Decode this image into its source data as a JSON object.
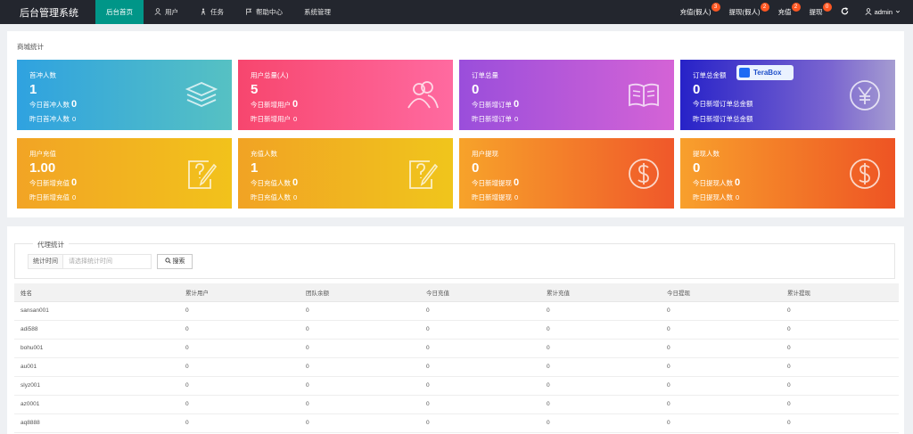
{
  "app_title": "后台管理系统",
  "nav": [
    {
      "label": "后台首页",
      "icon": "home-icon"
    },
    {
      "label": "用户",
      "icon": "user-icon"
    },
    {
      "label": "任务",
      "icon": "task-icon"
    },
    {
      "label": "帮助中心",
      "icon": "flag-icon"
    },
    {
      "label": "系统管理",
      "icon": ""
    }
  ],
  "header_right": [
    {
      "label": "充值(假人)",
      "badge": "3"
    },
    {
      "label": "提现(假人)",
      "badge": "2"
    },
    {
      "label": "充值",
      "badge": "2"
    },
    {
      "label": "提现",
      "badge": "0"
    }
  ],
  "user_name": "admin",
  "stats_title": "商城统计",
  "cards": [
    {
      "title": "首冲人数",
      "value": "1",
      "line1": "今日首冲人数",
      "line1_val": "0",
      "line2": "昨日首冲人数",
      "line2_val": "0",
      "icon": "stack-icon",
      "color": "#2fa2e0"
    },
    {
      "title": "用户总量(人)",
      "value": "5",
      "line1": "今日新增用户",
      "line1_val": "0",
      "line2": "昨日新增用户",
      "line2_val": "0",
      "icon": "users-icon",
      "color": "#f7466e"
    },
    {
      "title": "订单总量",
      "value": "0",
      "line1": "今日新增订单",
      "line1_val": "0",
      "line2": "昨日新增订单",
      "line2_val": "0",
      "icon": "book-icon",
      "color": "#9a4edb"
    },
    {
      "title": "订单总金额",
      "value": "0",
      "line1": "今日新增订单总金额",
      "line1_val": "",
      "line2": "昨日新增订单总金额",
      "line2_val": "",
      "icon": "yen-icon",
      "color": "#2722c8"
    },
    {
      "title": "用户充值",
      "value": "1.00",
      "line1": "今日新增充值",
      "line1_val": "0",
      "line2": "昨日新增充值",
      "line2_val": "0",
      "icon": "edit-icon",
      "color": "#f2a425"
    },
    {
      "title": "充值人数",
      "value": "1",
      "line1": "今日充值人数",
      "line1_val": "0",
      "line2": "昨日充值人数",
      "line2_val": "0",
      "icon": "edit-icon",
      "color": "#f1a324"
    },
    {
      "title": "用户提现",
      "value": "0",
      "line1": "今日新增提现",
      "line1_val": "0",
      "line2": "昨日新增提现",
      "line2_val": "0",
      "icon": "dollar-icon",
      "color": "#f0582a"
    },
    {
      "title": "提现人数",
      "value": "0",
      "line1": "今日提现人数",
      "line1_val": "0",
      "line2": "昨日提现人数",
      "line2_val": "0",
      "icon": "dollar-icon",
      "color": "#ee5424"
    }
  ],
  "terabox_label": "TeraBox",
  "agent": {
    "legend": "代理统计",
    "filter_label": "统计时间",
    "filter_placeholder": "请选择统计时间",
    "search_label": "搜索"
  },
  "table": {
    "headers": [
      "姓名",
      "累计用户",
      "团队余额",
      "今日充值",
      "累计充值",
      "今日提现",
      "累计提现"
    ],
    "rows": [
      [
        "sansan001",
        "0",
        "0",
        "0",
        "0",
        "0",
        "0"
      ],
      [
        "adi588",
        "0",
        "0",
        "0",
        "0",
        "0",
        "0"
      ],
      [
        "bohu001",
        "0",
        "0",
        "0",
        "0",
        "0",
        "0"
      ],
      [
        "au001",
        "0",
        "0",
        "0",
        "0",
        "0",
        "0"
      ],
      [
        "slyz001",
        "0",
        "0",
        "0",
        "0",
        "0",
        "0"
      ],
      [
        "az0001",
        "0",
        "0",
        "0",
        "0",
        "0",
        "0"
      ],
      [
        "aq8888",
        "0",
        "0",
        "0",
        "0",
        "0",
        "0"
      ]
    ]
  }
}
